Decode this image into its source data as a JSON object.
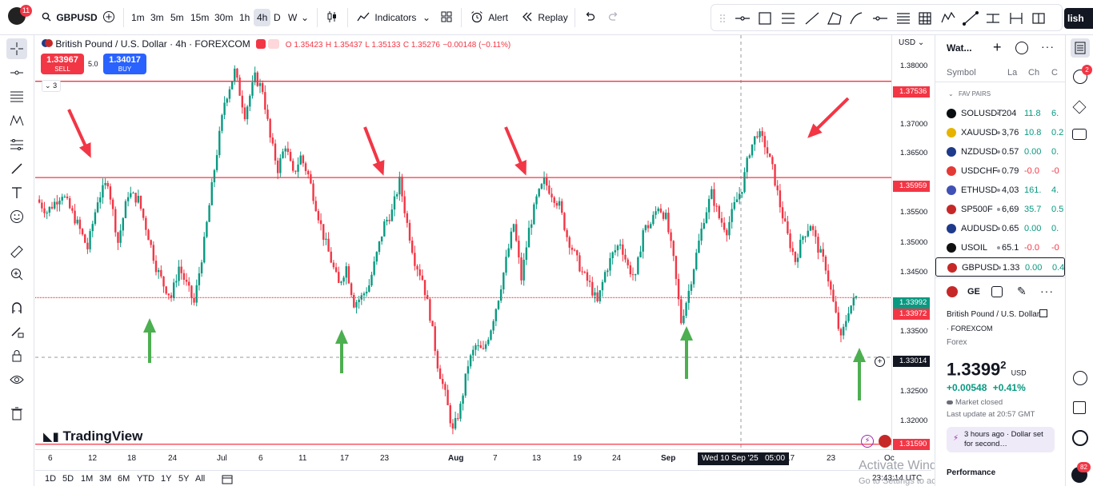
{
  "topbar": {
    "avatar_badge": "11",
    "symbol": "GBPUSD",
    "intervals": [
      "1m",
      "3m",
      "5m",
      "15m",
      "30m",
      "1h",
      "4h",
      "D",
      "W"
    ],
    "active_interval": "4h",
    "indicators_label": "Indicators",
    "alert_label": "Alert",
    "replay_label": "Replay",
    "publish_label": "lish"
  },
  "legend": {
    "title": "British Pound / U.S. Dollar · 4h · FOREXCOM",
    "open": "O 1.35423",
    "high": "H 1.35437",
    "low": "L 1.35133",
    "close": "C 1.35276",
    "change": "−0.00148 (−0.11%)",
    "sell_price": "1.33967",
    "sell_label": "SELL",
    "spread": "5.0",
    "buy_price": "1.34017",
    "buy_label": "BUY",
    "indicators_count": "3"
  },
  "price_axis": {
    "currency": "USD",
    "labels": [
      "1.38000",
      "1.37000",
      "1.36500",
      "1.35500",
      "1.35000",
      "1.34500",
      "1.33500",
      "1.32500",
      "1.32000"
    ],
    "tags": [
      {
        "text": "1.37536",
        "color": "#f23645"
      },
      {
        "text": "1.35959",
        "color": "#f23645"
      },
      {
        "text": "1.33992",
        "color": "#089981"
      },
      {
        "text": "1.33972",
        "color": "#f23645"
      },
      {
        "text": "1.33014",
        "color": "#131722"
      },
      {
        "text": "1.31590",
        "color": "#f23645"
      }
    ]
  },
  "time_axis": {
    "labels": [
      "6",
      "12",
      "18",
      "24",
      "Jul",
      "6",
      "11",
      "17",
      "23",
      "Aug",
      "7",
      "13",
      "19",
      "24",
      "Sep",
      "17",
      "23",
      "Oc"
    ],
    "crosshair_label": "Wed 10 Sep '25   05:00"
  },
  "bottom": {
    "ranges": [
      "1D",
      "5D",
      "1M",
      "3M",
      "6M",
      "YTD",
      "1Y",
      "5Y",
      "All"
    ],
    "clock": "23:43:14 UTC",
    "watermark": "TradingView",
    "activate_title": "Activate Windows",
    "activate_sub": "Go to Settings to activate Windows."
  },
  "watchlist": {
    "title": "Wat...",
    "col_symbol": "Symbol",
    "col_last": "La",
    "col_chg": "Ch",
    "col_chgp": "C",
    "section": "FAV PAIRS",
    "rows": [
      {
        "symbol": "SOLUSDT",
        "last": "204",
        "chg": "11.8",
        "chgp": "6.",
        "dir": "pos",
        "icon": "#0b0e11"
      },
      {
        "symbol": "XAUUSD",
        "last": "3,76",
        "chg": "10.8",
        "chgp": "0.2",
        "dir": "pos",
        "icon": "#e6b400"
      },
      {
        "symbol": "NZDUSD",
        "last": "0.57",
        "chg": "0.00",
        "chgp": "0.",
        "dir": "pos",
        "icon": "#1e3a8a"
      },
      {
        "symbol": "USDCHF",
        "last": "0.79",
        "chg": "-0.0",
        "chgp": "-0",
        "dir": "neg",
        "icon": "#e53935"
      },
      {
        "symbol": "ETHUSD",
        "last": "4,03",
        "chg": "161.",
        "chgp": "4.",
        "dir": "pos",
        "icon": "#3f51b5"
      },
      {
        "symbol": "SP500F",
        "last": "6,69",
        "chg": "35.7",
        "chgp": "0.5",
        "dir": "pos",
        "icon": "#c62828"
      },
      {
        "symbol": "AUDUSD",
        "last": "0.65",
        "chg": "0.00",
        "chgp": "0.",
        "dir": "pos",
        "icon": "#1e3a8a"
      },
      {
        "symbol": "USOIL",
        "last": "65.1",
        "chg": "-0.0",
        "chgp": "-0",
        "dir": "neg",
        "icon": "#111111"
      },
      {
        "symbol": "GBPUSD",
        "last": "1.33",
        "chg": "0.00",
        "chgp": "0.4",
        "dir": "pos",
        "icon": "#c62828"
      }
    ]
  },
  "details": {
    "symbol_short": "GE",
    "name": "British Pound / U.S. Dollar",
    "exchange": "FOREXCOM",
    "type": "Forex",
    "price_main": "1.3399",
    "price_sup": "2",
    "currency": "USD",
    "change": "+0.00548",
    "change_pct": "+0.41%",
    "market_status": "Market closed",
    "last_update": "Last update at 20:57 GMT",
    "news": "3 hours ago · Dollar set for second…",
    "performance": "Performance"
  },
  "right_strip": {
    "alerts_badge": "2",
    "notif_badge": "82"
  },
  "colors": {
    "up": "#089981",
    "down": "#f23645",
    "hline": "#f23645",
    "arrow_down": "#f23645",
    "arrow_up": "#4caf50"
  },
  "chart_data": {
    "type": "candlestick",
    "symbol": "GBPUSD",
    "interval": "4h",
    "ylim": [
      1.316,
      1.382
    ],
    "horizontal_levels": [
      1.37536,
      1.35959,
      1.33992,
      1.3159
    ],
    "crosshair_level": 1.33014,
    "price_path": [
      [
        0,
        1.356
      ],
      [
        4,
        1.354
      ],
      [
        10,
        1.357
      ],
      [
        16,
        1.352
      ],
      [
        20,
        1.348
      ],
      [
        24,
        1.356
      ],
      [
        28,
        1.359
      ],
      [
        32,
        1.349
      ],
      [
        36,
        1.357
      ],
      [
        40,
        1.356
      ],
      [
        44,
        1.35
      ],
      [
        47,
        1.345
      ],
      [
        50,
        1.342
      ],
      [
        53,
        1.34
      ],
      [
        56,
        1.345
      ],
      [
        59,
        1.342
      ],
      [
        62,
        1.339
      ],
      [
        66,
        1.349
      ],
      [
        70,
        1.361
      ],
      [
        74,
        1.372
      ],
      [
        78,
        1.377
      ],
      [
        82,
        1.37
      ],
      [
        86,
        1.376
      ],
      [
        89,
        1.374
      ],
      [
        92,
        1.366
      ],
      [
        95,
        1.361
      ],
      [
        98,
        1.365
      ],
      [
        101,
        1.36
      ],
      [
        104,
        1.363
      ],
      [
        107,
        1.36
      ],
      [
        110,
        1.355
      ],
      [
        113,
        1.35
      ],
      [
        116,
        1.346
      ],
      [
        119,
        1.342
      ],
      [
        122,
        1.345
      ],
      [
        125,
        1.339
      ],
      [
        128,
        1.34
      ],
      [
        131,
        1.342
      ],
      [
        134,
        1.347
      ],
      [
        137,
        1.352
      ],
      [
        140,
        1.354
      ],
      [
        143,
        1.359
      ],
      [
        146,
        1.352
      ],
      [
        149,
        1.346
      ],
      [
        152,
        1.343
      ],
      [
        155,
        1.337
      ],
      [
        158,
        1.329
      ],
      [
        161,
        1.324
      ],
      [
        164,
        1.318
      ],
      [
        167,
        1.322
      ],
      [
        170,
        1.329
      ],
      [
        173,
        1.332
      ],
      [
        176,
        1.331
      ],
      [
        179,
        1.335
      ],
      [
        182,
        1.34
      ],
      [
        185,
        1.346
      ],
      [
        188,
        1.352
      ],
      [
        191,
        1.343
      ],
      [
        194,
        1.351
      ],
      [
        197,
        1.356
      ],
      [
        200,
        1.359
      ],
      [
        203,
        1.357
      ],
      [
        206,
        1.355
      ],
      [
        209,
        1.35
      ],
      [
        212,
        1.347
      ],
      [
        215,
        1.344
      ],
      [
        218,
        1.342
      ],
      [
        221,
        1.339
      ],
      [
        224,
        1.344
      ],
      [
        227,
        1.347
      ],
      [
        230,
        1.349
      ],
      [
        233,
        1.345
      ],
      [
        236,
        1.343
      ],
      [
        239,
        1.351
      ],
      [
        242,
        1.352
      ],
      [
        245,
        1.355
      ],
      [
        248,
        1.353
      ],
      [
        251,
        1.346
      ],
      [
        254,
        1.336
      ],
      [
        257,
        1.341
      ],
      [
        260,
        1.347
      ],
      [
        263,
        1.353
      ],
      [
        266,
        1.357
      ],
      [
        269,
        1.353
      ],
      [
        272,
        1.351
      ],
      [
        275,
        1.355
      ],
      [
        278,
        1.358
      ],
      [
        281,
        1.364
      ],
      [
        284,
        1.367
      ],
      [
        287,
        1.365
      ],
      [
        290,
        1.361
      ],
      [
        293,
        1.355
      ],
      [
        296,
        1.35
      ],
      [
        299,
        1.346
      ],
      [
        302,
        1.35
      ],
      [
        305,
        1.352
      ],
      [
        308,
        1.348
      ],
      [
        311,
        1.345
      ],
      [
        314,
        1.339
      ],
      [
        317,
        1.333
      ],
      [
        320,
        1.338
      ],
      [
        323,
        1.34
      ]
    ]
  }
}
